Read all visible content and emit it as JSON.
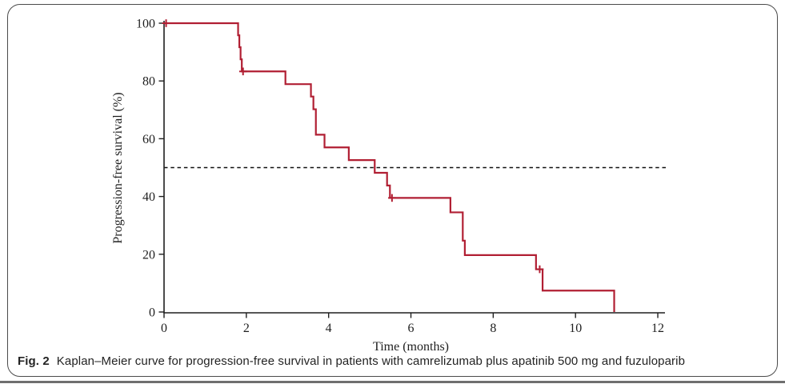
{
  "figure": {
    "caption_label": "Fig. 2",
    "caption_text": "Kaplan–Meier curve for progression-free survival in patients with camrelizumab plus apatinib 500 mg and fuzuloparib"
  },
  "chart_data": {
    "type": "line",
    "subtype": "kaplan-meier-step",
    "title": "",
    "xlabel": "Time (months)",
    "ylabel": "Progression-free survival (%)",
    "xlim": [
      0,
      12
    ],
    "ylim": [
      0,
      100
    ],
    "x_ticks": [
      0,
      2,
      4,
      6,
      8,
      10,
      12
    ],
    "y_ticks": [
      0,
      20,
      40,
      60,
      80,
      100
    ],
    "grid": false,
    "legend": "none",
    "median_line": {
      "value": 50,
      "style": "dashed",
      "color": "#111111"
    },
    "series": [
      {
        "name": "Progression-free survival",
        "color": "#b11f33",
        "steps": [
          [
            0,
            100
          ],
          [
            1.8,
            95.8
          ],
          [
            1.83,
            91.7
          ],
          [
            1.86,
            87.5
          ],
          [
            1.89,
            83.3
          ],
          [
            2.95,
            78.9
          ],
          [
            3.57,
            74.6
          ],
          [
            3.63,
            70.2
          ],
          [
            3.69,
            61.4
          ],
          [
            3.9,
            57.0
          ],
          [
            4.49,
            52.6
          ],
          [
            5.12,
            48.2
          ],
          [
            5.42,
            43.8
          ],
          [
            5.49,
            39.5
          ],
          [
            6.96,
            34.5
          ],
          [
            7.26,
            24.7
          ],
          [
            7.31,
            19.7
          ],
          [
            9.04,
            14.8
          ],
          [
            9.2,
            7.4
          ],
          [
            10.94,
            0
          ]
        ],
        "censor_marks": [
          [
            0.05,
            100
          ],
          [
            1.92,
            83.3
          ],
          [
            5.54,
            39.5
          ],
          [
            9.13,
            14.8
          ]
        ]
      }
    ]
  }
}
